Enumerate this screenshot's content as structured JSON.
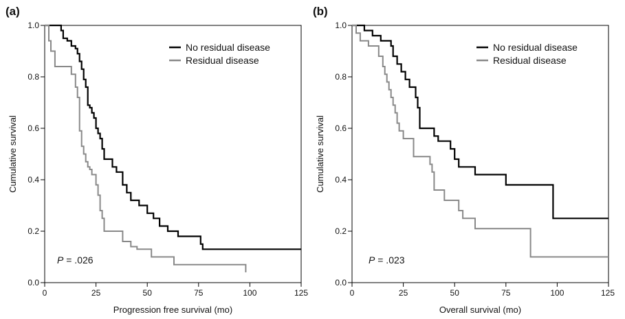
{
  "chart_data": [
    {
      "type": "line",
      "panel_label": "(a)",
      "xlabel": "Progression free survival (mo)",
      "ylabel": "Cumulative survival",
      "xlim": [
        0,
        125
      ],
      "ylim": [
        0,
        1.0
      ],
      "xticks": [
        "0",
        "25",
        "50",
        "75",
        "100",
        "125"
      ],
      "yticks": [
        "0.0",
        "0.2",
        "0.4",
        "0.6",
        "0.8",
        "1.0"
      ],
      "grid": false,
      "legend_position": "top-right",
      "annotation": {
        "p_symbol": "P",
        "p_text": " = .026"
      },
      "series": [
        {
          "name": "No residual disease",
          "color": "#000000",
          "x": [
            0,
            8,
            9,
            11,
            13,
            15,
            16,
            17,
            18,
            19,
            20,
            21,
            22,
            23,
            24,
            25,
            26,
            27,
            28,
            29,
            30,
            33,
            35,
            37,
            38,
            40,
            42,
            44,
            46,
            48,
            50,
            53,
            56,
            60,
            65,
            70,
            76,
            77,
            125
          ],
          "y": [
            1.0,
            0.98,
            0.95,
            0.94,
            0.92,
            0.91,
            0.89,
            0.86,
            0.83,
            0.79,
            0.76,
            0.69,
            0.68,
            0.66,
            0.64,
            0.6,
            0.58,
            0.56,
            0.52,
            0.48,
            0.48,
            0.45,
            0.43,
            0.43,
            0.38,
            0.35,
            0.32,
            0.32,
            0.3,
            0.3,
            0.27,
            0.25,
            0.22,
            0.2,
            0.18,
            0.18,
            0.15,
            0.13,
            0.13
          ]
        },
        {
          "name": "Residual disease",
          "color": "#888888",
          "x": [
            0,
            2,
            3,
            5,
            9,
            13,
            15,
            16,
            17,
            18,
            19,
            20,
            21,
            22,
            23,
            24,
            25,
            26,
            27,
            28,
            29,
            30,
            32,
            38,
            42,
            45,
            52,
            63,
            98
          ],
          "y": [
            1.0,
            0.94,
            0.9,
            0.84,
            0.84,
            0.81,
            0.76,
            0.72,
            0.59,
            0.53,
            0.5,
            0.47,
            0.45,
            0.44,
            0.42,
            0.42,
            0.38,
            0.34,
            0.28,
            0.25,
            0.2,
            0.2,
            0.2,
            0.16,
            0.14,
            0.13,
            0.1,
            0.07,
            0.04
          ]
        }
      ]
    },
    {
      "type": "line",
      "panel_label": "(b)",
      "xlabel": "Overall survival (mo)",
      "ylabel": "Cumulative survival",
      "xlim": [
        0,
        125
      ],
      "ylim": [
        0,
        1.0
      ],
      "xticks": [
        "0",
        "25",
        "50",
        "75",
        "100",
        "125"
      ],
      "yticks": [
        "0.0",
        "0.2",
        "0.4",
        "0.6",
        "0.8",
        "1.0"
      ],
      "grid": false,
      "legend_position": "top-right",
      "annotation": {
        "p_symbol": "P",
        "p_text": " = .023"
      },
      "series": [
        {
          "name": "No residual disease",
          "color": "#000000",
          "x": [
            0,
            6,
            10,
            14,
            19,
            20,
            22,
            24,
            26,
            28,
            31,
            32,
            33,
            35,
            40,
            42,
            45,
            48,
            50,
            52,
            58,
            60,
            75,
            98,
            125
          ],
          "y": [
            1.0,
            0.98,
            0.96,
            0.94,
            0.92,
            0.88,
            0.85,
            0.82,
            0.79,
            0.76,
            0.72,
            0.68,
            0.6,
            0.6,
            0.57,
            0.55,
            0.55,
            0.52,
            0.48,
            0.45,
            0.45,
            0.42,
            0.38,
            0.25,
            0.25
          ]
        },
        {
          "name": "Residual disease",
          "color": "#888888",
          "x": [
            0,
            2,
            4,
            8,
            13,
            15,
            16,
            17,
            18,
            19,
            20,
            21,
            22,
            23,
            24,
            25,
            27,
            30,
            35,
            38,
            39,
            40,
            45,
            52,
            54,
            60,
            87,
            125
          ],
          "y": [
            1.0,
            0.97,
            0.94,
            0.92,
            0.88,
            0.84,
            0.81,
            0.78,
            0.75,
            0.72,
            0.69,
            0.66,
            0.62,
            0.59,
            0.59,
            0.56,
            0.56,
            0.49,
            0.49,
            0.46,
            0.43,
            0.36,
            0.32,
            0.28,
            0.25,
            0.21,
            0.1,
            0.1
          ]
        }
      ]
    }
  ]
}
